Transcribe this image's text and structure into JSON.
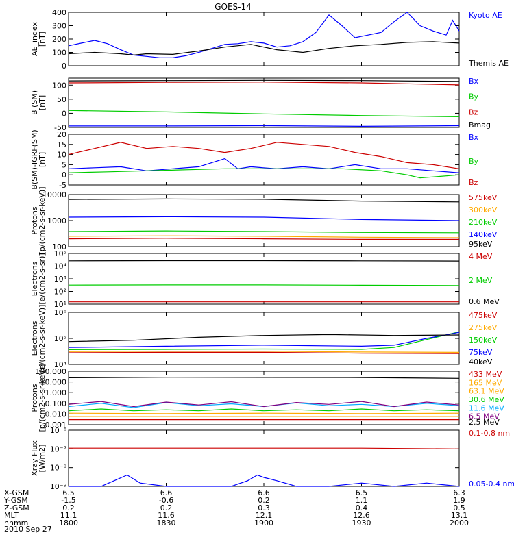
{
  "title": "GOES-14",
  "date_label": "2010 Sep 27",
  "x_ticks": [
    "1800",
    "1830",
    "1900",
    "1930",
    "2000"
  ],
  "ephemeris": [
    {
      "label": "X-GSM",
      "values": [
        "6.5",
        "6.6",
        "6.6",
        "6.5",
        "6.3"
      ]
    },
    {
      "label": "Y-GSM",
      "values": [
        "-1.5",
        "-0.6",
        "0.2",
        "1.1",
        "1.9"
      ]
    },
    {
      "label": "Z-GSM",
      "values": [
        "0.2",
        "0.2",
        "0.3",
        "0.4",
        "0.5"
      ]
    },
    {
      "label": "MLT",
      "values": [
        "11.1",
        "11.6",
        "12.1",
        "12.6",
        "13.1"
      ]
    },
    {
      "label": "hhmm",
      "values": [
        "1800",
        "1830",
        "1900",
        "1930",
        "2000"
      ]
    }
  ],
  "colors": {
    "black": "#000000",
    "blue": "#0000ff",
    "red": "#cc0000",
    "green": "#00cc00",
    "orange": "#ffaa00",
    "cyan": "#00aaff",
    "purple": "#800080",
    "teal": "#008888"
  },
  "chart_data": [
    {
      "type": "line",
      "ylabel": "AE_index\n[nT]",
      "ylim": [
        0,
        400
      ],
      "scale": "linear",
      "ticks": [
        {
          "v": 0,
          "l": "0"
        },
        {
          "v": 100,
          "l": "100"
        },
        {
          "v": 200,
          "l": "200"
        },
        {
          "v": 300,
          "l": "300"
        },
        {
          "v": 400,
          "l": "400"
        }
      ],
      "series": [
        {
          "name": "Kyoto AE",
          "color": "blue",
          "x": [
            0,
            4,
            8,
            12,
            16,
            20,
            24,
            28,
            32,
            36,
            40,
            44,
            48,
            52,
            56,
            60,
            64,
            68,
            72,
            76,
            80,
            84,
            88,
            92,
            96,
            100,
            104,
            108,
            112,
            116,
            118,
            120
          ],
          "y": [
            150,
            170,
            190,
            165,
            120,
            80,
            70,
            60,
            60,
            75,
            100,
            130,
            160,
            165,
            180,
            170,
            140,
            150,
            180,
            250,
            380,
            300,
            210,
            230,
            250,
            330,
            410,
            300,
            260,
            230,
            340,
            260
          ]
        },
        {
          "name": "Themis AE",
          "color": "black",
          "x": [
            0,
            8,
            16,
            20,
            24,
            32,
            40,
            48,
            56,
            64,
            72,
            80,
            88,
            96,
            104,
            112,
            120
          ],
          "y": [
            90,
            100,
            90,
            80,
            90,
            85,
            110,
            140,
            160,
            120,
            100,
            130,
            150,
            160,
            175,
            180,
            170
          ]
        }
      ]
    },
    {
      "type": "line",
      "ylabel": "B (SM)\n[nT]",
      "ylim": [
        -50,
        125
      ],
      "scale": "linear",
      "ticks": [
        {
          "v": -50,
          "l": "-50"
        },
        {
          "v": 0,
          "l": "0"
        },
        {
          "v": 50,
          "l": "50"
        },
        {
          "v": 100,
          "l": "100"
        }
      ],
      "series": [
        {
          "name": "Bx",
          "color": "blue",
          "x": [
            0,
            30,
            60,
            90,
            120
          ],
          "y": [
            -45,
            -45,
            -44,
            -46,
            -44
          ]
        },
        {
          "name": "By",
          "color": "green",
          "x": [
            0,
            30,
            60,
            90,
            120
          ],
          "y": [
            10,
            5,
            -2,
            -8,
            -12
          ]
        },
        {
          "name": "Bz",
          "color": "red",
          "x": [
            0,
            30,
            60,
            90,
            120
          ],
          "y": [
            108,
            110,
            111,
            108,
            101
          ]
        },
        {
          "name": "Bmag",
          "color": "black",
          "x": [
            0,
            30,
            60,
            90,
            120
          ],
          "y": [
            115,
            116,
            117,
            116,
            113
          ]
        }
      ]
    },
    {
      "type": "line",
      "ylabel": "B(SM)-IGRF(SM)\n[nT]",
      "ylim": [
        -5,
        20
      ],
      "scale": "linear",
      "ticks": [
        {
          "v": -5,
          "l": "-5"
        },
        {
          "v": 0,
          "l": "0"
        },
        {
          "v": 5,
          "l": "5"
        },
        {
          "v": 10,
          "l": "10"
        },
        {
          "v": 15,
          "l": "15"
        },
        {
          "v": 20,
          "l": "20"
        }
      ],
      "series": [
        {
          "name": "Bx",
          "color": "blue",
          "x": [
            0,
            8,
            16,
            24,
            32,
            40,
            48,
            52,
            56,
            64,
            72,
            80,
            88,
            96,
            104,
            112,
            120
          ],
          "y": [
            3,
            3.5,
            4,
            2,
            3,
            4,
            8,
            3,
            4,
            3,
            4,
            3,
            5,
            3,
            3,
            2,
            1
          ]
        },
        {
          "name": "By",
          "color": "green",
          "x": [
            0,
            12,
            24,
            36,
            48,
            60,
            72,
            84,
            96,
            104,
            108,
            112,
            120
          ],
          "y": [
            1,
            1.5,
            2,
            2.5,
            3,
            3,
            3,
            3,
            2,
            0,
            -1.5,
            -1,
            0
          ]
        },
        {
          "name": "Bz",
          "color": "red",
          "x": [
            0,
            8,
            16,
            24,
            32,
            40,
            48,
            56,
            64,
            72,
            80,
            88,
            96,
            104,
            112,
            120
          ],
          "y": [
            10,
            13,
            16,
            13,
            14,
            13,
            11,
            13,
            16,
            15,
            14,
            11,
            9,
            6,
            5,
            3
          ]
        }
      ]
    },
    {
      "type": "line",
      "ylabel": "Protons\n[p/(cm2-s-sr-keV)]",
      "ylim": [
        100,
        10000
      ],
      "scale": "log",
      "ticks": [
        {
          "v": 100,
          "l": "100"
        },
        {
          "v": 1000,
          "l": "1000"
        },
        {
          "v": 10000,
          "l": "10000"
        }
      ],
      "series": [
        {
          "name": "575keV",
          "color": "red",
          "x": [
            0,
            30,
            60,
            90,
            120
          ],
          "y": [
            200,
            210,
            200,
            190,
            190
          ]
        },
        {
          "name": "300keV",
          "color": "orange",
          "x": [
            0,
            30,
            60,
            90,
            120
          ],
          "y": [
            250,
            260,
            250,
            230,
            220
          ]
        },
        {
          "name": "210keV",
          "color": "green",
          "x": [
            0,
            30,
            60,
            90,
            120
          ],
          "y": [
            380,
            400,
            380,
            350,
            340
          ]
        },
        {
          "name": "140keV",
          "color": "blue",
          "x": [
            0,
            30,
            60,
            90,
            120
          ],
          "y": [
            1350,
            1400,
            1350,
            1100,
            1000
          ]
        },
        {
          "name": "95keV",
          "color": "black",
          "x": [
            0,
            30,
            60,
            90,
            120
          ],
          "y": [
            6500,
            6800,
            6600,
            5600,
            5200
          ]
        }
      ]
    },
    {
      "type": "line",
      "ylabel": "Electrons\n[e/(cm2-s-sr)]",
      "ylim": [
        10,
        100000
      ],
      "scale": "log",
      "ticks": [
        {
          "v": 10,
          "l": "10¹"
        },
        {
          "v": 100,
          "l": "10²"
        },
        {
          "v": 1000,
          "l": "10³"
        },
        {
          "v": 10000,
          "l": "10⁴"
        },
        {
          "v": 100000,
          "l": "10⁵"
        }
      ],
      "series": [
        {
          "name": "4 MeV",
          "color": "red",
          "x": [
            0,
            30,
            60,
            90,
            120
          ],
          "y": [
            15,
            15,
            15,
            15,
            15
          ]
        },
        {
          "name": "2 MeV",
          "color": "green",
          "x": [
            0,
            30,
            60,
            90,
            120
          ],
          "y": [
            320,
            330,
            330,
            310,
            290
          ]
        },
        {
          "name": "0.6 MeV",
          "color": "black",
          "x": [
            0,
            30,
            60,
            90,
            120
          ],
          "y": [
            26000,
            27000,
            27000,
            26000,
            25000
          ]
        }
      ]
    },
    {
      "type": "line",
      "ylabel": "Electrons\n[e/(cm2-s-sr-keV)]",
      "ylim": [
        10000,
        1000000
      ],
      "scale": "log",
      "ticks": [
        {
          "v": 10000,
          "l": "10⁴"
        },
        {
          "v": 100000,
          "l": "10⁵"
        },
        {
          "v": 1000000,
          "l": "10⁶"
        }
      ],
      "series": [
        {
          "name": "475keV",
          "color": "red",
          "x": [
            0,
            30,
            60,
            90,
            120
          ],
          "y": [
            28000,
            29000,
            29000,
            27000,
            26000
          ]
        },
        {
          "name": "275keV",
          "color": "orange",
          "x": [
            0,
            30,
            60,
            90,
            120
          ],
          "y": [
            31000,
            32000,
            32000,
            30000,
            29000
          ]
        },
        {
          "name": "150keV",
          "color": "green",
          "x": [
            0,
            30,
            60,
            90,
            100,
            110,
            120
          ],
          "y": [
            37000,
            38000,
            39000,
            38000,
            45000,
            90000,
            180000
          ]
        },
        {
          "name": "75keV",
          "color": "blue",
          "x": [
            0,
            30,
            60,
            90,
            100,
            110,
            120
          ],
          "y": [
            45000,
            50000,
            55000,
            50000,
            55000,
            100000,
            170000
          ]
        },
        {
          "name": "40keV",
          "color": "black",
          "x": [
            0,
            20,
            40,
            60,
            80,
            100,
            120
          ],
          "y": [
            75000,
            85000,
            110000,
            130000,
            140000,
            130000,
            135000
          ]
        }
      ]
    },
    {
      "type": "line",
      "ylabel": "Protons\n[p/(cm2-s-sr-keV)]",
      "ylim": [
        0.001,
        100
      ],
      "scale": "log",
      "ticks": [
        {
          "v": 0.001,
          "l": "0.001"
        },
        {
          "v": 0.01,
          "l": "0.010"
        },
        {
          "v": 0.1,
          "l": "0.100"
        },
        {
          "v": 1,
          "l": "1.000"
        },
        {
          "v": 10,
          "l": "10.000"
        },
        {
          "v": 100,
          "l": "100.000"
        }
      ],
      "series": [
        {
          "name": "433 MeV",
          "color": "red",
          "x": [
            0,
            30,
            60,
            90,
            120
          ],
          "y": [
            0.003,
            0.003,
            0.003,
            0.003,
            0.003
          ]
        },
        {
          "name": "165 MeV",
          "color": "orange",
          "x": [
            0,
            30,
            60,
            90,
            120
          ],
          "y": [
            0.006,
            0.006,
            0.006,
            0.006,
            0.006
          ]
        },
        {
          "name": "63.1 MeV",
          "color": "orange",
          "x": [
            0,
            30,
            60,
            90,
            120
          ],
          "y": [
            0.012,
            0.011,
            0.012,
            0.011,
            0.012
          ]
        },
        {
          "name": "30.6 MeV",
          "color": "green",
          "x": [
            0,
            10,
            20,
            30,
            40,
            50,
            60,
            70,
            80,
            90,
            100,
            110,
            120
          ],
          "y": [
            0.02,
            0.03,
            0.02,
            0.025,
            0.02,
            0.03,
            0.02,
            0.025,
            0.02,
            0.03,
            0.02,
            0.025,
            0.02
          ]
        },
        {
          "name": "11.6 MeV",
          "color": "cyan",
          "x": [
            0,
            10,
            20,
            30,
            40,
            50,
            60,
            70,
            80,
            90,
            100,
            110,
            120
          ],
          "y": [
            0.05,
            0.1,
            0.04,
            0.12,
            0.06,
            0.09,
            0.05,
            0.11,
            0.06,
            0.08,
            0.05,
            0.1,
            0.06
          ]
        },
        {
          "name": "6.5 MeV",
          "color": "purple",
          "x": [
            0,
            10,
            20,
            30,
            40,
            50,
            60,
            70,
            80,
            90,
            100,
            110,
            120
          ],
          "y": [
            0.08,
            0.15,
            0.05,
            0.13,
            0.07,
            0.14,
            0.05,
            0.12,
            0.08,
            0.15,
            0.05,
            0.13,
            0.07
          ]
        },
        {
          "name": "2.5 MeV",
          "color": "black",
          "x": [
            0,
            30,
            60,
            90,
            120
          ],
          "y": [
            25,
            28,
            27,
            26,
            22
          ]
        }
      ]
    },
    {
      "type": "line",
      "ylabel": "Xray Flux\n[W/m2]",
      "ylim": [
        1e-09,
        1e-06
      ],
      "scale": "log",
      "ticks": [
        {
          "v": 1e-09,
          "l": "10⁻⁹"
        },
        {
          "v": 1e-08,
          "l": "10⁻⁸"
        },
        {
          "v": 1e-07,
          "l": "10⁻⁷"
        },
        {
          "v": 1e-06,
          "l": "10⁻⁶"
        }
      ],
      "series": [
        {
          "name": "0.1-0.8 nm",
          "color": "red",
          "x": [
            0,
            30,
            60,
            90,
            120
          ],
          "y": [
            1.1e-07,
            1.1e-07,
            1.1e-07,
            1.1e-07,
            1e-07
          ]
        },
        {
          "name": "0.05-0.4 nm",
          "color": "blue",
          "x": [
            0,
            10,
            14,
            18,
            22,
            30,
            40,
            50,
            55,
            58,
            60,
            64,
            70,
            80,
            90,
            100,
            110,
            120
          ],
          "y": [
            1e-09,
            1e-09,
            2e-09,
            4e-09,
            1.5e-09,
            1e-09,
            1e-09,
            1e-09,
            2e-09,
            4e-09,
            3e-09,
            2e-09,
            1e-09,
            1e-09,
            1.5e-09,
            1e-09,
            1.5e-09,
            1e-09
          ]
        }
      ]
    }
  ]
}
